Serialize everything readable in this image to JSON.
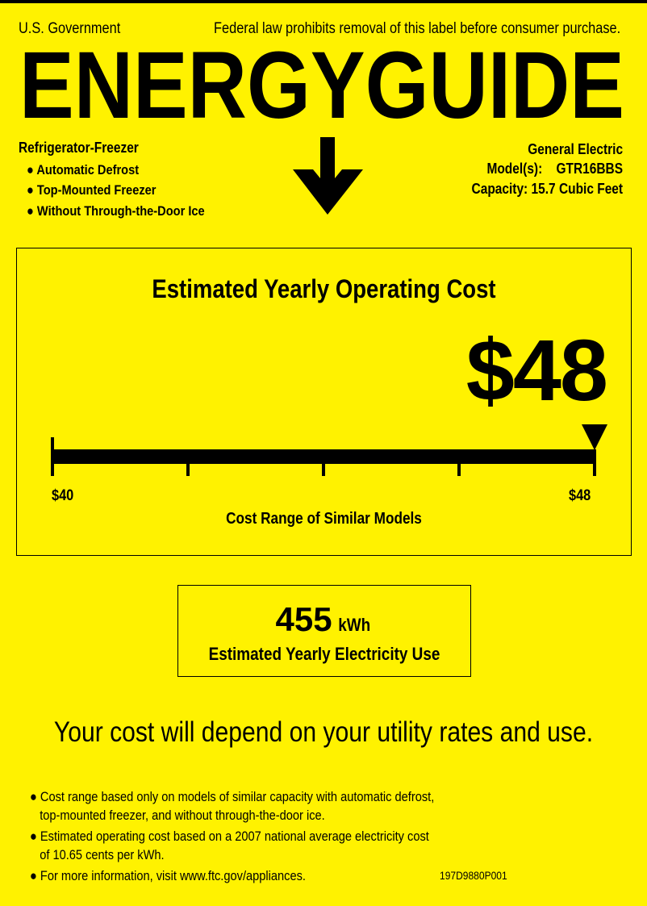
{
  "header": {
    "left": "U.S. Government",
    "notice": "Federal law prohibits removal of this label before consumer purchase.",
    "title": "ENERGYGUIDE"
  },
  "product": {
    "type": "Refrigerator-Freezer",
    "features": [
      "Automatic Defrost",
      "Top-Mounted Freezer",
      "Without Through-the-Door Ice"
    ],
    "brand": "General Electric",
    "model_label": "Model(s):",
    "model": "GTR16BBS",
    "capacity": "Capacity: 15.7 Cubic Feet"
  },
  "cost": {
    "title": "Estimated Yearly Operating Cost",
    "value": "$48",
    "value_number": 48,
    "range_min_label": "$40",
    "range_max_label": "$48",
    "range_min": 40,
    "range_max": 48,
    "range_caption": "Cost Range of Similar Models"
  },
  "electricity": {
    "value": "455",
    "unit": "kWh",
    "caption": "Estimated Yearly Electricity Use"
  },
  "statement": "Your cost will depend on your utility rates and use.",
  "footnotes": [
    [
      "Cost range based only on models of similar capacity with automatic defrost,",
      "top-mounted freezer, and without through-the-door ice."
    ],
    [
      "Estimated operating cost based on a 2007 national average electricity cost",
      "of 10.65 cents per kWh."
    ],
    [
      "For more information, visit www.ftc.gov/appliances."
    ]
  ],
  "code": "197D9880P001",
  "colors": {
    "background": "#FFF200",
    "ink": "#000000"
  }
}
